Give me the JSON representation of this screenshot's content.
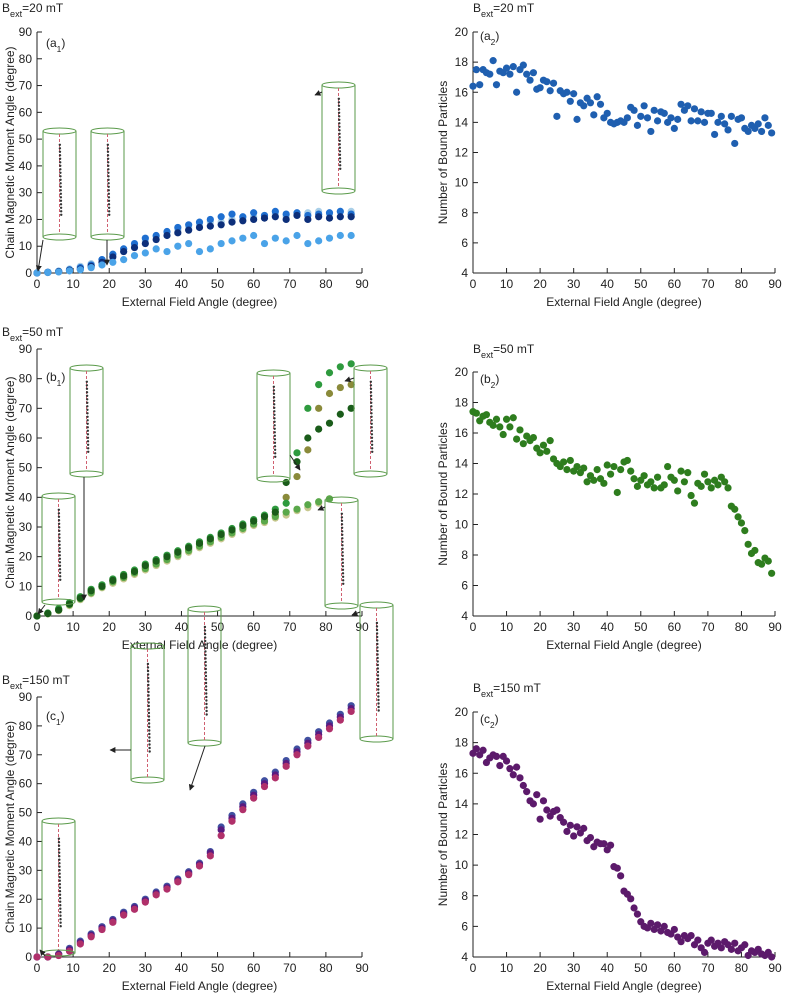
{
  "chart_data": [
    {
      "type": "scatter",
      "title": {
        "base": "B",
        "sub": "ext",
        "rest": "=20 mT"
      },
      "panel_label": {
        "base": "(a",
        "sub": "1",
        "rest": ")"
      },
      "x_label": "External Field Angle (degree)",
      "y_label": "Chain Magnetic Moment Angle (degree)",
      "xlim": [
        0,
        90
      ],
      "xticks": [
        0,
        10,
        20,
        30,
        40,
        50,
        60,
        70,
        80,
        90
      ],
      "ylim": [
        0,
        90
      ],
      "yticks": [
        0,
        10,
        20,
        30,
        40,
        50,
        60,
        70,
        80,
        90
      ],
      "x": [
        0,
        3,
        6,
        9,
        12,
        15,
        18,
        21,
        24,
        27,
        30,
        33,
        36,
        39,
        42,
        45,
        48,
        51,
        54,
        57,
        60,
        63,
        66,
        69,
        72,
        75,
        78,
        81,
        84,
        87
      ],
      "series": [
        {
          "color": "#a9cfe8",
          "values": [
            0,
            0.3,
            0.7,
            1.5,
            2.5,
            3.5,
            5,
            7,
            9,
            10.5,
            12,
            13.5,
            15,
            16,
            17,
            18,
            19,
            19,
            20,
            20.5,
            21,
            21.5,
            22,
            21,
            22,
            22.5,
            23,
            22,
            23,
            23
          ]
        },
        {
          "color": "#1f6fd0",
          "values": [
            0,
            0.3,
            0.6,
            1.2,
            2,
            3,
            5,
            7,
            9,
            11,
            13,
            14,
            15.5,
            17,
            18,
            19,
            20,
            21,
            22,
            21,
            22.5,
            21.5,
            23,
            22,
            22.5,
            21.5,
            22,
            22.5,
            23,
            22
          ]
        },
        {
          "color": "#0d2f7a",
          "values": [
            0,
            0.2,
            0.5,
            1,
            1.5,
            2.5,
            4,
            6,
            8,
            9.5,
            11,
            12.5,
            14,
            15,
            16,
            17,
            17.5,
            18,
            19,
            19.5,
            20,
            20.5,
            21,
            20,
            21.5,
            20,
            21,
            20.5,
            21,
            21
          ]
        },
        {
          "color": "#4aa3e8",
          "values": [
            0,
            0.2,
            0.4,
            0.8,
            1.2,
            2,
            3,
            4,
            5,
            6.5,
            7.5,
            9,
            8,
            10,
            11,
            8,
            9,
            11,
            12,
            13,
            14,
            11,
            13,
            12,
            14,
            11,
            12,
            13,
            14,
            14
          ]
        }
      ]
    },
    {
      "type": "scatter",
      "title": {
        "base": "B",
        "sub": "ext",
        "rest": "=20 mT"
      },
      "panel_label": {
        "base": "(a",
        "sub": "2",
        "rest": ")"
      },
      "x_label": "External Field Angle (degree)",
      "y_label": "Number of Bound Particles",
      "xlim": [
        0,
        90
      ],
      "xticks": [
        0,
        10,
        20,
        30,
        40,
        50,
        60,
        70,
        80,
        90
      ],
      "ylim": [
        4,
        20
      ],
      "yticks": [
        4,
        6,
        8,
        10,
        12,
        14,
        16,
        18,
        20
      ],
      "color": "#1f5fb0",
      "x": [
        0,
        1,
        2,
        3,
        4,
        5,
        6,
        7,
        8,
        9,
        10,
        11,
        12,
        13,
        14,
        15,
        16,
        17,
        18,
        19,
        20,
        21,
        22,
        23,
        24,
        25,
        26,
        27,
        28,
        29,
        30,
        31,
        32,
        33,
        34,
        35,
        36,
        37,
        38,
        39,
        40,
        41,
        42,
        43,
        44,
        45,
        46,
        47,
        48,
        49,
        50,
        51,
        52,
        53,
        54,
        55,
        56,
        57,
        58,
        59,
        60,
        61,
        62,
        63,
        64,
        65,
        66,
        67,
        68,
        69,
        70,
        71,
        72,
        73,
        74,
        75,
        76,
        77,
        78,
        79,
        80,
        81,
        82,
        83,
        84,
        85,
        86,
        87,
        88,
        89
      ],
      "values": [
        16.4,
        17.5,
        16.5,
        17.5,
        17.3,
        17.2,
        18.1,
        16.5,
        17.4,
        17.3,
        17.6,
        17.2,
        17.7,
        16.0,
        17.5,
        17.8,
        17.2,
        16.8,
        17.3,
        16.2,
        16.3,
        16.8,
        16.7,
        16.1,
        16.6,
        14.4,
        16.1,
        15.9,
        16.0,
        15.4,
        15.9,
        14.2,
        15.3,
        15.1,
        15.6,
        15.3,
        14.5,
        15.7,
        15.2,
        14.3,
        14.6,
        14.0,
        13.9,
        14.0,
        14.1,
        14.0,
        14.3,
        15.0,
        14.8,
        13.8,
        14.4,
        15.1,
        14.3,
        13.4,
        14.8,
        14.1,
        14.7,
        14.6,
        14.0,
        14.3,
        13.6,
        14.2,
        15.2,
        14.8,
        15.1,
        14.1,
        14.9,
        14.1,
        14.7,
        14.0,
        14.6,
        14.6,
        13.2,
        14.0,
        14.4,
        13.9,
        13.5,
        14.4,
        12.6,
        14.2,
        14.3,
        13.6,
        13.4,
        13.8,
        13.6,
        13.9,
        13.4,
        14.3,
        13.8,
        13.3
      ]
    },
    {
      "type": "scatter",
      "title": {
        "base": "B",
        "sub": "ext",
        "rest": "=50 mT"
      },
      "panel_label": {
        "base": "(b",
        "sub": "1",
        "rest": ")"
      },
      "x_label": "External Field Angle (degree)",
      "y_label": "Chain Magnetic Moment Angle (degree)",
      "xlim": [
        0,
        90
      ],
      "xticks": [
        0,
        10,
        20,
        30,
        40,
        50,
        60,
        70,
        80,
        90
      ],
      "ylim": [
        0,
        90
      ],
      "yticks": [
        0,
        10,
        20,
        30,
        40,
        50,
        60,
        70,
        80,
        90
      ],
      "x": [
        0,
        3,
        6,
        9,
        12,
        15,
        18,
        21,
        24,
        27,
        30,
        33,
        36,
        39,
        42,
        45,
        48,
        51,
        54,
        57,
        60,
        63,
        66,
        69,
        72,
        75,
        78,
        81,
        84,
        87
      ],
      "series": [
        {
          "color": "#c8c890",
          "values": [
            0,
            0.7,
            1.8,
            3.5,
            5.5,
            7.5,
            9.5,
            11,
            12.5,
            14,
            15.5,
            17,
            18.5,
            20,
            21.5,
            23,
            24.5,
            26,
            27.5,
            29,
            30.5,
            31.5,
            33,
            34,
            35.5,
            36.5,
            38,
            39.5,
            null,
            null
          ]
        },
        {
          "color": "#8a8a3a",
          "values": [
            0,
            0.9,
            2.2,
            4,
            6,
            8,
            10,
            12,
            13,
            15,
            16.5,
            18,
            19.5,
            21,
            22.5,
            24,
            25.5,
            27,
            28.5,
            30,
            31,
            32.5,
            34,
            40,
            47,
            56,
            70,
            75,
            77,
            78
          ]
        },
        {
          "color": "#5aa84a",
          "values": [
            0,
            0.8,
            2,
            3.8,
            5.8,
            7.8,
            9.8,
            11.5,
            13,
            14.5,
            16,
            17.5,
            19,
            20.5,
            22,
            23.5,
            25,
            26.5,
            28,
            29.5,
            31,
            32,
            33.5,
            35,
            36,
            37.5,
            38.5,
            39.5,
            null,
            null
          ]
        },
        {
          "color": "#2e9a3e",
          "values": [
            0,
            1,
            2.5,
            4.5,
            6.5,
            9,
            10.5,
            12.5,
            14,
            15.5,
            17.5,
            19,
            20.5,
            22,
            23.5,
            25,
            26.5,
            28,
            29.5,
            31,
            32.5,
            34,
            36,
            38,
            55,
            70,
            78,
            82,
            84,
            85
          ]
        },
        {
          "color": "#1a5c1a",
          "values": [
            0,
            0.8,
            2,
            4,
            6,
            8.5,
            10,
            12,
            13.5,
            15,
            17,
            18.5,
            20,
            21.5,
            23,
            24.5,
            26,
            27.5,
            29,
            30.5,
            32,
            33.5,
            35,
            45,
            52,
            60,
            63,
            65,
            68,
            70
          ]
        }
      ]
    },
    {
      "type": "scatter",
      "title": {
        "base": "B",
        "sub": "ext",
        "rest": "=50 mT"
      },
      "panel_label": {
        "base": "(b",
        "sub": "2",
        "rest": ")"
      },
      "x_label": "External Field Angle (degree)",
      "y_label": "Number of Bound Particles",
      "xlim": [
        0,
        90
      ],
      "xticks": [
        0,
        10,
        20,
        30,
        40,
        50,
        60,
        70,
        80,
        90
      ],
      "ylim": [
        4,
        20
      ],
      "yticks": [
        4,
        6,
        8,
        10,
        12,
        14,
        16,
        18,
        20
      ],
      "color": "#2e7d1e",
      "x": [
        0,
        1,
        2,
        3,
        4,
        5,
        6,
        7,
        8,
        9,
        10,
        11,
        12,
        13,
        14,
        15,
        16,
        17,
        18,
        19,
        20,
        21,
        22,
        23,
        24,
        25,
        26,
        27,
        28,
        29,
        30,
        31,
        32,
        33,
        34,
        35,
        36,
        37,
        38,
        39,
        40,
        41,
        42,
        43,
        44,
        45,
        46,
        47,
        48,
        49,
        50,
        51,
        52,
        53,
        54,
        55,
        56,
        57,
        58,
        59,
        60,
        61,
        62,
        63,
        64,
        65,
        66,
        67,
        68,
        69,
        70,
        71,
        72,
        73,
        74,
        75,
        76,
        77,
        78,
        79,
        80,
        81,
        82,
        83,
        84,
        85,
        86,
        87,
        88,
        89
      ],
      "values": [
        17.4,
        17.3,
        16.8,
        17.1,
        17.2,
        16.7,
        16.5,
        16.9,
        16.4,
        15.9,
        16.9,
        16.4,
        17.0,
        15.6,
        16.2,
        15.3,
        15.8,
        15.5,
        15.7,
        15.0,
        14.7,
        15.2,
        14.8,
        15.5,
        14.3,
        14.0,
        13.8,
        14.1,
        13.6,
        14.2,
        13.5,
        13.8,
        13.4,
        13.7,
        12.8,
        13.2,
        12.9,
        13.6,
        13.0,
        12.7,
        13.9,
        13.3,
        13.8,
        12.1,
        13.6,
        14.1,
        14.2,
        13.5,
        13.0,
        12.5,
        12.9,
        13.2,
        12.6,
        12.8,
        12.4,
        13.1,
        12.4,
        12.6,
        13.8,
        13.1,
        12.9,
        12.2,
        13.5,
        12.8,
        13.4,
        11.9,
        11.4,
        12.7,
        12.5,
        13.3,
        12.8,
        12.4,
        12.9,
        12.6,
        13.1,
        12.8,
        12.4,
        11.2,
        11.0,
        10.5,
        10.1,
        9.6,
        8.7,
        8.1,
        8.3,
        7.5,
        7.4,
        7.8,
        7.6,
        6.8
      ]
    },
    {
      "type": "scatter",
      "title": {
        "base": "B",
        "sub": "ext",
        "rest": "=150 mT"
      },
      "panel_label": {
        "base": "(c",
        "sub": "1",
        "rest": ")"
      },
      "x_label": "External Field Angle (degree)",
      "y_label": "Chain Magnetic Moment Angle (degree)",
      "xlim": [
        0,
        90
      ],
      "xticks": [
        0,
        10,
        20,
        30,
        40,
        50,
        60,
        70,
        80,
        90
      ],
      "ylim": [
        0,
        90
      ],
      "yticks": [
        0,
        10,
        20,
        30,
        40,
        50,
        60,
        70,
        80,
        90
      ],
      "x": [
        0,
        3,
        6,
        9,
        12,
        15,
        18,
        21,
        24,
        27,
        30,
        33,
        36,
        39,
        42,
        45,
        48,
        51,
        54,
        57,
        60,
        63,
        66,
        69,
        72,
        75,
        78,
        81,
        84,
        87
      ],
      "series": [
        {
          "color": "#4050a0",
          "values": [
            0,
            0,
            1,
            3,
            5.5,
            8,
            10.5,
            13,
            15.5,
            17.5,
            20,
            22.5,
            24.5,
            27,
            29.5,
            32.5,
            36.5,
            45,
            49,
            53,
            57,
            61,
            64,
            68,
            72,
            75,
            78,
            81,
            84,
            87
          ]
        },
        {
          "color": "#5a1a80",
          "values": [
            0,
            0,
            1,
            2.5,
            5,
            7.5,
            10,
            12.5,
            15,
            17,
            19.5,
            22,
            24,
            26.5,
            29,
            32,
            36,
            44,
            48,
            52,
            56,
            60,
            63,
            67,
            71,
            74,
            77,
            80,
            83,
            86
          ]
        },
        {
          "color": "#b0306a",
          "values": [
            0,
            0,
            0.5,
            2,
            4.5,
            7,
            9.5,
            12,
            14.5,
            16.5,
            19,
            21.5,
            23.5,
            26,
            28.5,
            31.5,
            35,
            42,
            47,
            51,
            55,
            59,
            62,
            66,
            70,
            73,
            76,
            79,
            82,
            85
          ]
        }
      ]
    },
    {
      "type": "scatter",
      "title": {
        "base": "B",
        "sub": "ext",
        "rest": "=150 mT"
      },
      "panel_label": {
        "base": "(c",
        "sub": "2",
        "rest": ")"
      },
      "x_label": "External Field Angle (degree)",
      "y_label": "Number of Bound Particles",
      "xlim": [
        0,
        90
      ],
      "xticks": [
        0,
        10,
        20,
        30,
        40,
        50,
        60,
        70,
        80,
        90
      ],
      "ylim": [
        4,
        20
      ],
      "yticks": [
        4,
        6,
        8,
        10,
        12,
        14,
        16,
        18,
        20
      ],
      "color": "#5c1a6b",
      "x": [
        0,
        1,
        2,
        3,
        4,
        5,
        6,
        7,
        8,
        9,
        10,
        11,
        12,
        13,
        14,
        15,
        16,
        17,
        18,
        19,
        20,
        21,
        22,
        23,
        24,
        25,
        26,
        27,
        28,
        29,
        30,
        31,
        32,
        33,
        34,
        35,
        36,
        37,
        38,
        39,
        40,
        41,
        42,
        43,
        44,
        45,
        46,
        47,
        48,
        49,
        50,
        51,
        52,
        53,
        54,
        55,
        56,
        57,
        58,
        59,
        60,
        61,
        62,
        63,
        64,
        65,
        66,
        67,
        68,
        69,
        70,
        71,
        72,
        73,
        74,
        75,
        76,
        77,
        78,
        79,
        80,
        81,
        82,
        83,
        84,
        85,
        86,
        87,
        88,
        89
      ],
      "values": [
        17.3,
        17.6,
        17.2,
        17.5,
        16.7,
        17.0,
        17.2,
        17.1,
        16.5,
        17.1,
        16.8,
        16.3,
        15.9,
        16.4,
        15.7,
        15.2,
        14.8,
        14.2,
        14.0,
        14.6,
        13.0,
        14.2,
        13.6,
        13.2,
        13.5,
        13.6,
        13.1,
        12.8,
        12.2,
        12.6,
        11.9,
        12.5,
        12.1,
        12.4,
        11.6,
        11.8,
        11.2,
        11.5,
        11.4,
        11.4,
        11.0,
        11.3,
        9.9,
        9.8,
        9.3,
        8.3,
        8.1,
        7.8,
        7.2,
        6.8,
        6.3,
        6.0,
        5.9,
        6.2,
        5.8,
        6.1,
        5.7,
        6.0,
        5.6,
        5.5,
        5.8,
        5.3,
        5.0,
        5.4,
        5.2,
        5.4,
        4.8,
        5.1,
        4.6,
        4.3,
        4.9,
        5.1,
        4.7,
        4.9,
        4.6,
        5.0,
        4.8,
        4.5,
        4.9,
        4.4,
        4.6,
        4.8,
        4.1,
        4.4,
        4.3,
        4.5,
        4.2,
        4.1,
        4.3,
        4.0
      ]
    }
  ]
}
